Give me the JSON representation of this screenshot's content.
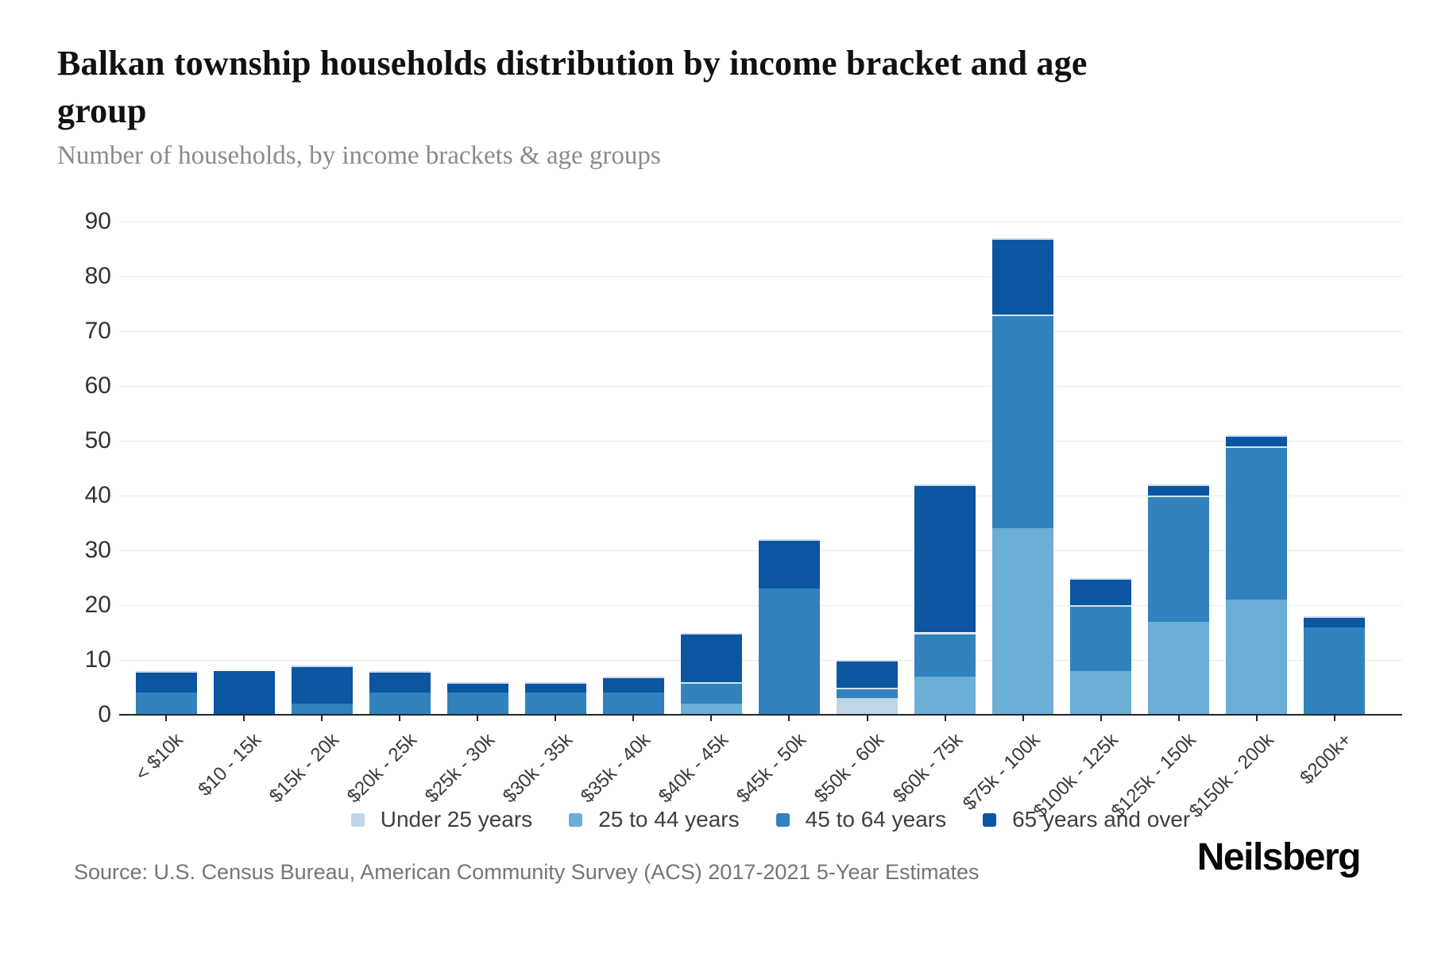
{
  "header": {
    "title": "Balkan township households distribution by income bracket and age group",
    "subtitle": "Number of households, by income brackets & age groups"
  },
  "chart_data": {
    "type": "bar",
    "stacked": true,
    "title": "Balkan township households distribution by income bracket and age group",
    "subtitle": "Number of households, by income brackets & age groups",
    "xlabel": "",
    "ylabel": "Number of households",
    "ylim": [
      0,
      90
    ],
    "yticks": [
      0,
      10,
      20,
      30,
      40,
      50,
      60,
      70,
      80,
      90
    ],
    "grid": "horizontal",
    "legend_position": "bottom",
    "categories": [
      "< $10k",
      "$10 - 15k",
      "$15k - 20k",
      "$20k - 25k",
      "$25k - 30k",
      "$30k - 35k",
      "$35k - 40k",
      "$40k - 45k",
      "$45k - 50k",
      "$50k - 60k",
      "$60k - 75k",
      "$75k - 100k",
      "$100k - 125k",
      "$125k - 150k",
      "$150k - 200k",
      "$200k+"
    ],
    "series": [
      {
        "name": "Under 25 years",
        "color": "#bdd7e7",
        "values": [
          0,
          0,
          0,
          0,
          0,
          0,
          0,
          0,
          0,
          3,
          0,
          0,
          0,
          0,
          0,
          0
        ]
      },
      {
        "name": "25 to 44 years",
        "color": "#6baed6",
        "values": [
          0,
          0,
          0,
          0,
          0,
          0,
          0,
          2,
          0,
          0,
          7,
          34,
          8,
          17,
          21,
          0
        ]
      },
      {
        "name": "45 to 64 years",
        "color": "#3182bd",
        "values": [
          4,
          0,
          2,
          4,
          4,
          4,
          4,
          4,
          23,
          2,
          8,
          39,
          12,
          23,
          28,
          16
        ]
      },
      {
        "name": "65 years and over",
        "color": "#0b55a1",
        "values": [
          4,
          8,
          7,
          4,
          2,
          2,
          3,
          9,
          9,
          5,
          27,
          14,
          5,
          2,
          2,
          2
        ]
      }
    ],
    "totals": [
      8,
      8,
      9,
      8,
      6,
      6,
      7,
      15,
      32,
      10,
      42,
      87,
      25,
      42,
      51,
      18
    ]
  },
  "legend": {
    "items": [
      "Under 25 years",
      "25 to 44 years",
      "45 to 64 years",
      "65 years and over"
    ]
  },
  "footer": {
    "source": "Source: U.S. Census Bureau, American Community Survey (ACS) 2017-2021 5-Year Estimates",
    "brand": "Neilsberg"
  }
}
